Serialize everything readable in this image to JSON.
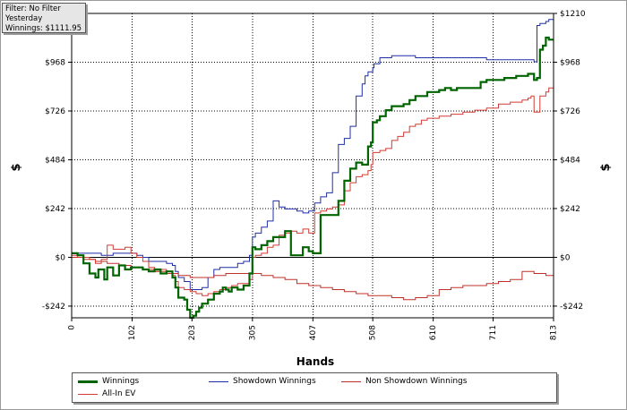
{
  "info": {
    "filter": "Filter: No Filter",
    "period": "Yesterday",
    "winnings": "Winnings: $1111.95"
  },
  "colors": {
    "winnings": "#006400",
    "showdown": "#1f2fa8",
    "nonshowdown": "#c0302a",
    "allin": "#d23b33",
    "zero": "#000000",
    "grid": "#000000"
  },
  "chart_data": {
    "type": "line",
    "xlabel": "Hands",
    "ylabel": "$",
    "xlim": [
      0,
      813
    ],
    "ylim": [
      -300,
      1210
    ],
    "xticks": [
      0,
      102,
      203,
      305,
      407,
      508,
      610,
      711,
      813
    ],
    "yticks": [
      {
        "value": -242,
        "label": "-$242"
      },
      {
        "value": 0,
        "label": "$0"
      },
      {
        "value": 242,
        "label": "$242"
      },
      {
        "value": 484,
        "label": "$484"
      },
      {
        "value": 726,
        "label": "$726"
      },
      {
        "value": 968,
        "label": "$968"
      },
      {
        "value": 1210,
        "label": "$1210"
      }
    ],
    "legend_position": "bottom",
    "series": [
      {
        "key": "winnings",
        "name": "Winnings",
        "x": [
          0,
          10,
          20,
          30,
          40,
          45,
          55,
          60,
          70,
          80,
          90,
          100,
          110,
          120,
          130,
          140,
          150,
          160,
          170,
          175,
          180,
          190,
          195,
          200,
          205,
          210,
          215,
          220,
          230,
          240,
          250,
          255,
          260,
          265,
          270,
          280,
          290,
          300,
          305,
          310,
          320,
          330,
          340,
          350,
          360,
          370,
          380,
          390,
          400,
          407,
          415,
          420,
          430,
          440,
          450,
          460,
          470,
          480,
          490,
          500,
          505,
          508,
          515,
          520,
          530,
          540,
          550,
          560,
          570,
          580,
          590,
          600,
          610,
          620,
          630,
          640,
          650,
          660,
          670,
          680,
          690,
          700,
          710,
          720,
          730,
          740,
          750,
          760,
          770,
          775,
          780,
          785,
          790,
          795,
          800,
          805,
          813
        ],
        "y": [
          20,
          10,
          -30,
          -80,
          -100,
          -60,
          -110,
          -50,
          -90,
          -40,
          -60,
          -50,
          -50,
          -60,
          -70,
          -60,
          -80,
          -70,
          -100,
          -150,
          -200,
          -210,
          -260,
          -300,
          -290,
          -270,
          -250,
          -230,
          -210,
          -180,
          -170,
          -150,
          -160,
          -170,
          -150,
          -160,
          -140,
          -80,
          50,
          40,
          60,
          80,
          100,
          100,
          130,
          10,
          10,
          50,
          30,
          20,
          20,
          210,
          210,
          210,
          280,
          380,
          440,
          470,
          460,
          550,
          570,
          670,
          680,
          700,
          730,
          750,
          750,
          760,
          780,
          800,
          800,
          820,
          820,
          830,
          840,
          830,
          840,
          840,
          840,
          840,
          870,
          880,
          880,
          880,
          890,
          890,
          900,
          900,
          910,
          910,
          880,
          890,
          1030,
          1050,
          1090,
          1080,
          1080
        ]
      },
      {
        "key": "showdown",
        "name": "Showdown Winnings",
        "x": [
          0,
          10,
          20,
          30,
          40,
          50,
          60,
          70,
          80,
          90,
          100,
          110,
          120,
          130,
          140,
          150,
          160,
          170,
          175,
          180,
          190,
          200,
          210,
          220,
          230,
          240,
          250,
          260,
          270,
          280,
          290,
          300,
          305,
          310,
          320,
          330,
          340,
          350,
          360,
          370,
          380,
          390,
          400,
          410,
          420,
          430,
          440,
          450,
          460,
          470,
          480,
          490,
          495,
          500,
          508,
          510,
          520,
          530,
          540,
          560,
          580,
          600,
          620,
          640,
          660,
          680,
          700,
          720,
          740,
          760,
          770,
          780,
          785,
          790,
          800,
          805,
          813
        ],
        "y": [
          20,
          20,
          20,
          20,
          20,
          10,
          10,
          20,
          20,
          20,
          20,
          10,
          0,
          -20,
          -20,
          -20,
          -30,
          -40,
          -70,
          -100,
          -120,
          -160,
          -160,
          -150,
          -100,
          -60,
          -50,
          -50,
          -50,
          -30,
          -20,
          10,
          100,
          120,
          150,
          180,
          280,
          250,
          240,
          240,
          230,
          220,
          230,
          270,
          300,
          320,
          420,
          560,
          590,
          650,
          800,
          860,
          900,
          920,
          940,
          960,
          990,
          990,
          1000,
          1000,
          990,
          990,
          990,
          990,
          990,
          990,
          980,
          980,
          980,
          980,
          980,
          970,
          1150,
          1160,
          1170,
          1180,
          1190
        ]
      },
      {
        "key": "nonshowdown",
        "name": "Non Showdown Winnings",
        "x": [
          0,
          20,
          40,
          60,
          80,
          100,
          120,
          140,
          160,
          180,
          200,
          220,
          240,
          260,
          280,
          300,
          320,
          340,
          360,
          380,
          400,
          420,
          440,
          460,
          480,
          500,
          520,
          540,
          560,
          580,
          600,
          620,
          640,
          660,
          680,
          700,
          710,
          720,
          740,
          760,
          780,
          800,
          813
        ],
        "y": [
          0,
          -10,
          -20,
          -30,
          -40,
          -50,
          -60,
          -70,
          -80,
          -90,
          -100,
          -100,
          -90,
          -80,
          -80,
          -80,
          -90,
          -100,
          -110,
          -130,
          -140,
          -150,
          -160,
          -170,
          -180,
          -190,
          -190,
          -200,
          -210,
          -200,
          -190,
          -160,
          -150,
          -140,
          -140,
          -130,
          -130,
          -120,
          -110,
          -70,
          -80,
          -90,
          -80
        ]
      },
      {
        "key": "allin",
        "name": "All-In EV",
        "x": [
          0,
          10,
          20,
          30,
          40,
          50,
          60,
          70,
          80,
          90,
          100,
          110,
          120,
          130,
          140,
          150,
          160,
          170,
          175,
          180,
          190,
          200,
          210,
          220,
          230,
          240,
          250,
          260,
          270,
          280,
          290,
          300,
          305,
          310,
          320,
          330,
          340,
          350,
          360,
          370,
          380,
          390,
          400,
          407,
          410,
          420,
          430,
          440,
          450,
          460,
          470,
          480,
          490,
          500,
          505,
          508,
          520,
          530,
          540,
          550,
          560,
          570,
          580,
          590,
          600,
          620,
          640,
          660,
          680,
          700,
          720,
          740,
          760,
          770,
          775,
          780,
          790,
          800,
          805,
          813
        ],
        "y": [
          10,
          0,
          0,
          -10,
          -30,
          -10,
          60,
          40,
          40,
          50,
          20,
          0,
          -20,
          -50,
          -70,
          -60,
          -70,
          -90,
          -120,
          -150,
          -160,
          -170,
          -180,
          -190,
          -180,
          -170,
          -160,
          -150,
          -140,
          -130,
          -130,
          -110,
          0,
          10,
          20,
          50,
          60,
          110,
          120,
          130,
          120,
          140,
          120,
          120,
          220,
          230,
          240,
          250,
          260,
          330,
          370,
          400,
          410,
          430,
          460,
          520,
          530,
          540,
          580,
          600,
          620,
          650,
          660,
          680,
          690,
          700,
          710,
          720,
          730,
          740,
          760,
          770,
          780,
          790,
          800,
          720,
          800,
          820,
          840,
          850
        ]
      }
    ]
  },
  "legend": [
    {
      "key": "winnings",
      "label": "Winnings"
    },
    {
      "key": "showdown",
      "label": "Showdown Winnings"
    },
    {
      "key": "nonshowdown",
      "label": "Non Showdown Winnings"
    },
    {
      "key": "allin",
      "label": "All-In EV"
    }
  ]
}
